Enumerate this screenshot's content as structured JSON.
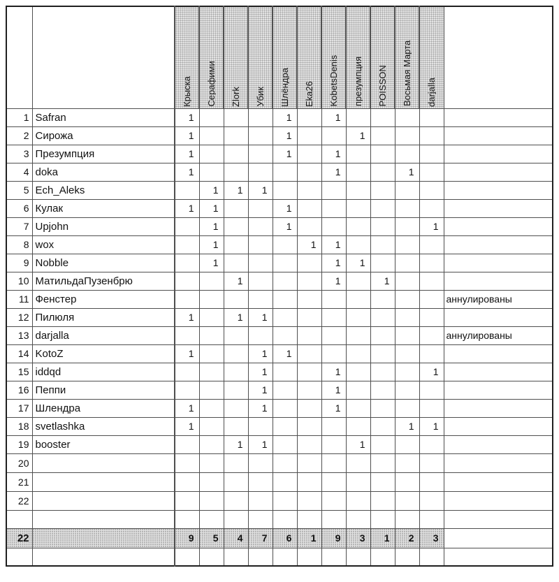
{
  "table": {
    "columns": [
      "Крыска",
      "Серафими",
      "Zlork",
      "Убик",
      "Шлёндра",
      "Eka26",
      "KobetsDenis",
      "презумпция",
      "POISSON",
      "Восьмая Марта",
      "darjalla"
    ],
    "rows": [
      {
        "num": "1",
        "name": "Safran",
        "cells": [
          "1",
          "",
          "",
          "",
          "1",
          "",
          "1",
          "",
          "",
          "",
          ""
        ],
        "note": ""
      },
      {
        "num": "2",
        "name": "Сирожа",
        "cells": [
          "1",
          "",
          "",
          "",
          "1",
          "",
          "",
          "1",
          "",
          "",
          ""
        ],
        "note": ""
      },
      {
        "num": "3",
        "name": "Презумпция",
        "cells": [
          "1",
          "",
          "",
          "",
          "1",
          "",
          "1",
          "",
          "",
          "",
          ""
        ],
        "note": ""
      },
      {
        "num": "4",
        "name": "doka",
        "cells": [
          "1",
          "",
          "",
          "",
          "",
          "",
          "1",
          "",
          "",
          "1",
          ""
        ],
        "note": ""
      },
      {
        "num": "5",
        "name": "Ech_Aleks",
        "cells": [
          "",
          "1",
          "1",
          "1",
          "",
          "",
          "",
          "",
          "",
          "",
          ""
        ],
        "note": ""
      },
      {
        "num": "6",
        "name": "Кулак",
        "cells": [
          "1",
          "1",
          "",
          "",
          "1",
          "",
          "",
          "",
          "",
          "",
          ""
        ],
        "note": ""
      },
      {
        "num": "7",
        "name": "Upjohn",
        "cells": [
          "",
          "1",
          "",
          "",
          "1",
          "",
          "",
          "",
          "",
          "",
          "1"
        ],
        "note": ""
      },
      {
        "num": "8",
        "name": "wox",
        "cells": [
          "",
          "1",
          "",
          "",
          "",
          "1",
          "1",
          "",
          "",
          "",
          ""
        ],
        "note": ""
      },
      {
        "num": "9",
        "name": "Nobble",
        "cells": [
          "",
          "1",
          "",
          "",
          "",
          "",
          "1",
          "1",
          "",
          "",
          ""
        ],
        "note": ""
      },
      {
        "num": "10",
        "name": "МатильдаПузенбрю",
        "cells": [
          "",
          "",
          "1",
          "",
          "",
          "",
          "1",
          "",
          "1",
          "",
          ""
        ],
        "note": ""
      },
      {
        "num": "11",
        "name": "Фенстер",
        "cells": [
          "",
          "",
          "",
          "",
          "",
          "",
          "",
          "",
          "",
          "",
          ""
        ],
        "note": "аннулированы"
      },
      {
        "num": "12",
        "name": "Пилюля",
        "cells": [
          "1",
          "",
          "1",
          "1",
          "",
          "",
          "",
          "",
          "",
          "",
          ""
        ],
        "note": ""
      },
      {
        "num": "13",
        "name": "darjalla",
        "cells": [
          "",
          "",
          "",
          "",
          "",
          "",
          "",
          "",
          "",
          "",
          ""
        ],
        "note": "аннулированы"
      },
      {
        "num": "14",
        "name": "KotoZ",
        "cells": [
          "1",
          "",
          "",
          "1",
          "1",
          "",
          "",
          "",
          "",
          "",
          ""
        ],
        "note": ""
      },
      {
        "num": "15",
        "name": "iddqd",
        "cells": [
          "",
          "",
          "",
          "1",
          "",
          "",
          "1",
          "",
          "",
          "",
          "1"
        ],
        "note": ""
      },
      {
        "num": "16",
        "name": "Пеппи",
        "cells": [
          "",
          "",
          "",
          "1",
          "",
          "",
          "1",
          "",
          "",
          "",
          ""
        ],
        "note": ""
      },
      {
        "num": "17",
        "name": "Шлендра",
        "cells": [
          "1",
          "",
          "",
          "1",
          "",
          "",
          "1",
          "",
          "",
          "",
          ""
        ],
        "note": ""
      },
      {
        "num": "18",
        "name": "svetlashka",
        "cells": [
          "1",
          "",
          "",
          "",
          "",
          "",
          "",
          "",
          "",
          "1",
          "1"
        ],
        "note": ""
      },
      {
        "num": "19",
        "name": "booster",
        "cells": [
          "",
          "",
          "1",
          "1",
          "",
          "",
          "",
          "1",
          "",
          "",
          ""
        ],
        "note": ""
      }
    ],
    "empty_row_numbers": [
      "20",
      "21",
      "22"
    ],
    "totals": {
      "label": "22",
      "values": [
        "9",
        "5",
        "4",
        "7",
        "6",
        "1",
        "9",
        "3",
        "1",
        "2",
        "3"
      ]
    }
  },
  "colors": {
    "grid_line": "#4f4f4f",
    "outer_border": "#1f1f1f",
    "header_fill": "#e3e3e3",
    "totals_fill": "#e3e3e3",
    "text": "#111111",
    "background": "#ffffff"
  }
}
